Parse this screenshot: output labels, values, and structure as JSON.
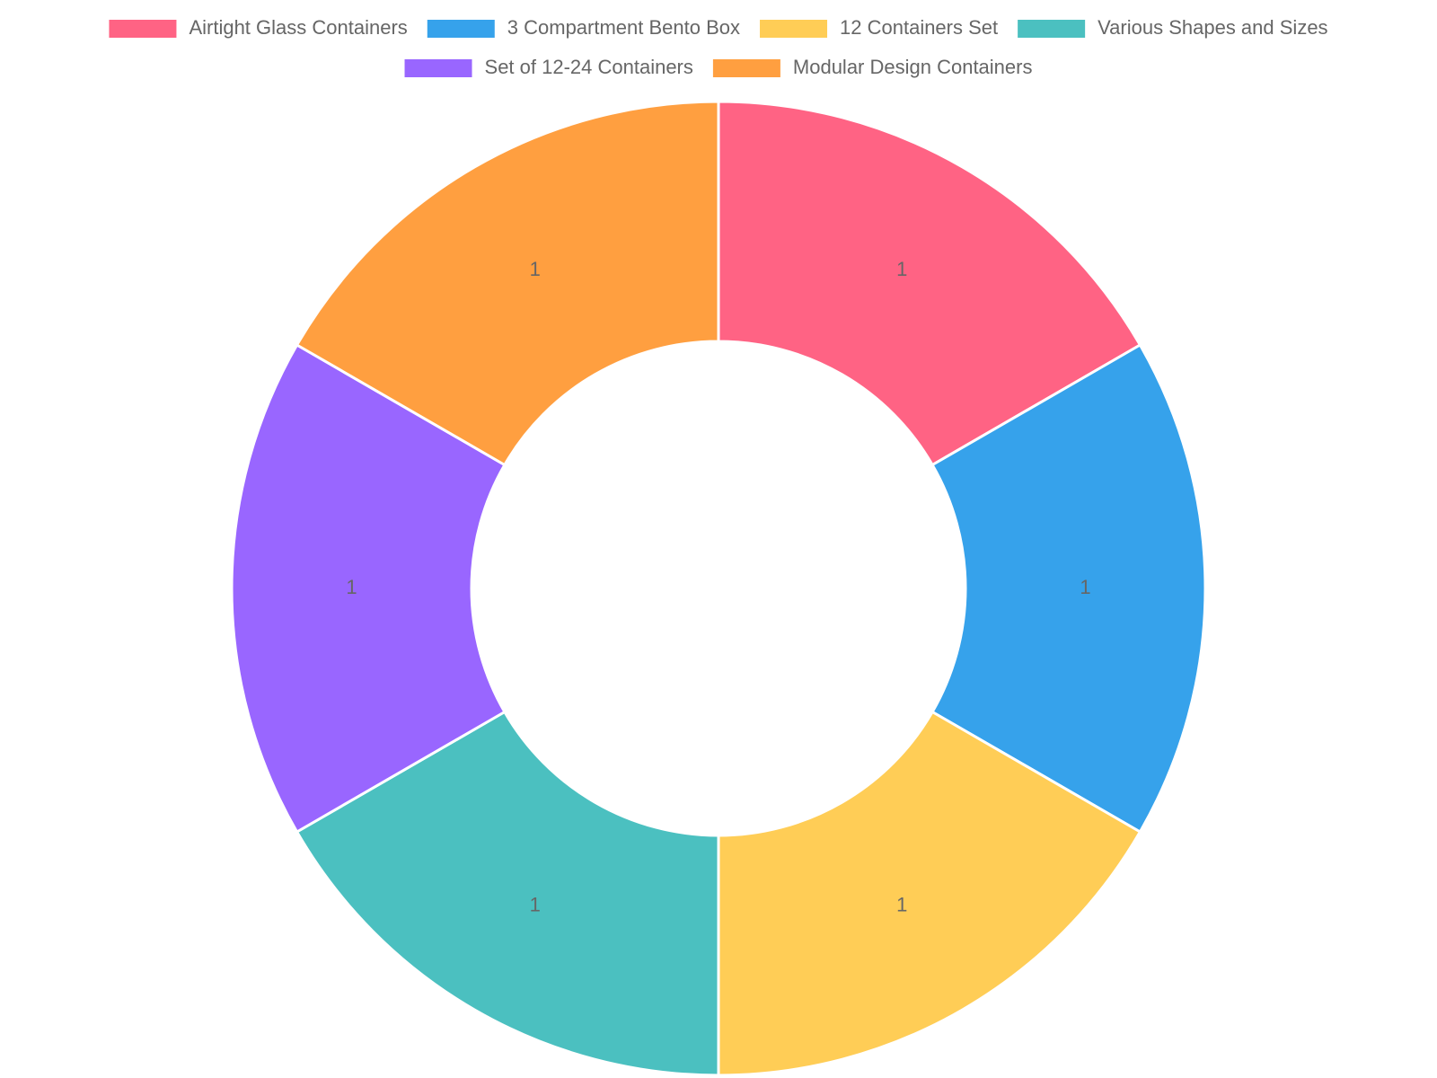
{
  "chart_data": {
    "type": "doughnut",
    "categories": [
      "Airtight Glass Containers",
      "3 Compartment Bento Box",
      "12 Containers Set",
      "Various Shapes and Sizes",
      "Set of 12-24 Containers",
      "Modular Design Containers"
    ],
    "values": [
      1,
      1,
      1,
      1,
      1,
      1
    ],
    "colors": [
      "#ff6384",
      "#36a2eb",
      "#ffcd56",
      "#4bc0c0",
      "#9966ff",
      "#ff9f40"
    ]
  }
}
